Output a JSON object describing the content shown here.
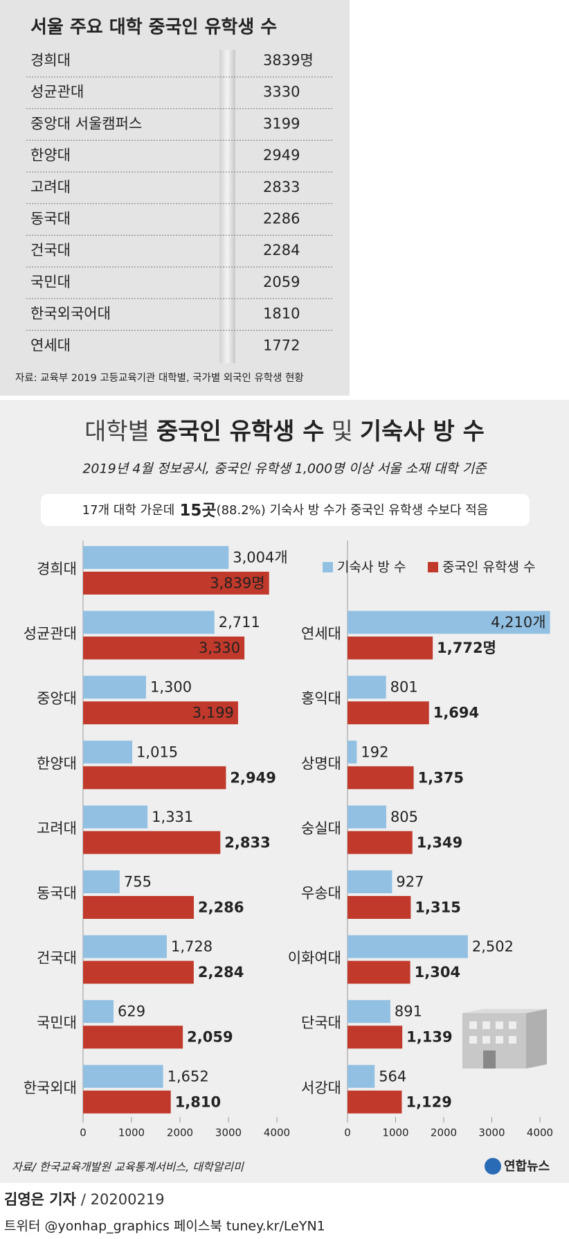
{
  "table": {
    "title": "서울 주요 대학 중국인 유학생 수",
    "rows": [
      [
        "경희대",
        "3839명"
      ],
      [
        "성균관대",
        "3330"
      ],
      [
        "중앙대 서울캠퍼스",
        "3199"
      ],
      [
        "한양대",
        "2949"
      ],
      [
        "고려대",
        "2833"
      ],
      [
        "동국대",
        "2286"
      ],
      [
        "건국대",
        "2284"
      ],
      [
        "국민대",
        "2059"
      ],
      [
        "한국외국어대",
        "1810"
      ],
      [
        "연세대",
        "1772"
      ]
    ],
    "source": "자료: 교육부 2019 고등교육기관 대학별, 국가별 외국인 유학생 현황"
  },
  "infographic": {
    "title": [
      "대학별",
      "중국인 유학생 수",
      "및",
      "기숙사 방 수"
    ],
    "subtitle": "2019년 4월 정보공시, 중국인 유학생 1,000명 이상 서울 소재 대학 기준",
    "note": [
      "17개 대학 가운데",
      "15곳",
      "(88.2%) 기숙사 방 수가 중국인 유학생 수보다 적음"
    ],
    "source": "자료/ 한국교육개발원 교육통계서비스, 대학알리미",
    "logo": "연합뉴스"
  },
  "chart_data": [
    {
      "type": "bar",
      "orientation": "horizontal",
      "categories": [
        "경희대",
        "성균관대",
        "중앙대",
        "한양대",
        "고려대",
        "동국대",
        "건국대",
        "국민대",
        "한국외대"
      ],
      "series": [
        {
          "color": "#92c0e3",
          "values": [
            3004,
            2711,
            1300,
            1015,
            1331,
            755,
            1728,
            629,
            1652
          ],
          "value_labels": [
            "3,004개",
            "2,711",
            "1,300",
            "1,015",
            "1,331",
            "755",
            "1,728",
            "629",
            "1,652"
          ]
        },
        {
          "color": "#c0392b",
          "values": [
            3839,
            3330,
            3199,
            2949,
            2833,
            2286,
            2284,
            2059,
            1810
          ],
          "value_labels": [
            "3,839명",
            "3,330",
            "3,199",
            "2,949",
            "2,833",
            "2,286",
            "2,284",
            "2,059",
            "1,810"
          ]
        }
      ],
      "xlim": [
        0,
        4000
      ],
      "xticks": [
        0,
        1000,
        2000,
        3000,
        4000
      ]
    },
    {
      "type": "bar",
      "orientation": "horizontal",
      "categories": [
        "연세대",
        "홍익대",
        "상명대",
        "숭실대",
        "우송대",
        "이화여대",
        "단국대",
        "서강대"
      ],
      "series": [
        {
          "name": "기숙사 방 수",
          "color": "#92c0e3",
          "values": [
            4210,
            801,
            192,
            805,
            927,
            2502,
            891,
            564
          ],
          "value_labels": [
            "4,210개",
            "801",
            "192",
            "805",
            "927",
            "2,502",
            "891",
            "564"
          ]
        },
        {
          "name": "중국인 유학생 수",
          "color": "#c0392b",
          "values": [
            1772,
            1694,
            1375,
            1349,
            1315,
            1304,
            1139,
            1129
          ],
          "value_labels": [
            "1,772명",
            "1,694",
            "1,375",
            "1,349",
            "1,315",
            "1,304",
            "1,139",
            "1,129"
          ]
        }
      ],
      "xlim": [
        0,
        4000
      ],
      "xticks": [
        0,
        1000,
        2000,
        3000,
        4000
      ]
    }
  ],
  "footer": {
    "byline": [
      "김영은 기자",
      "/ 20200219"
    ],
    "social": "트위터 @yonhap_graphics 페이스북 tuney.kr/LeYN1"
  }
}
